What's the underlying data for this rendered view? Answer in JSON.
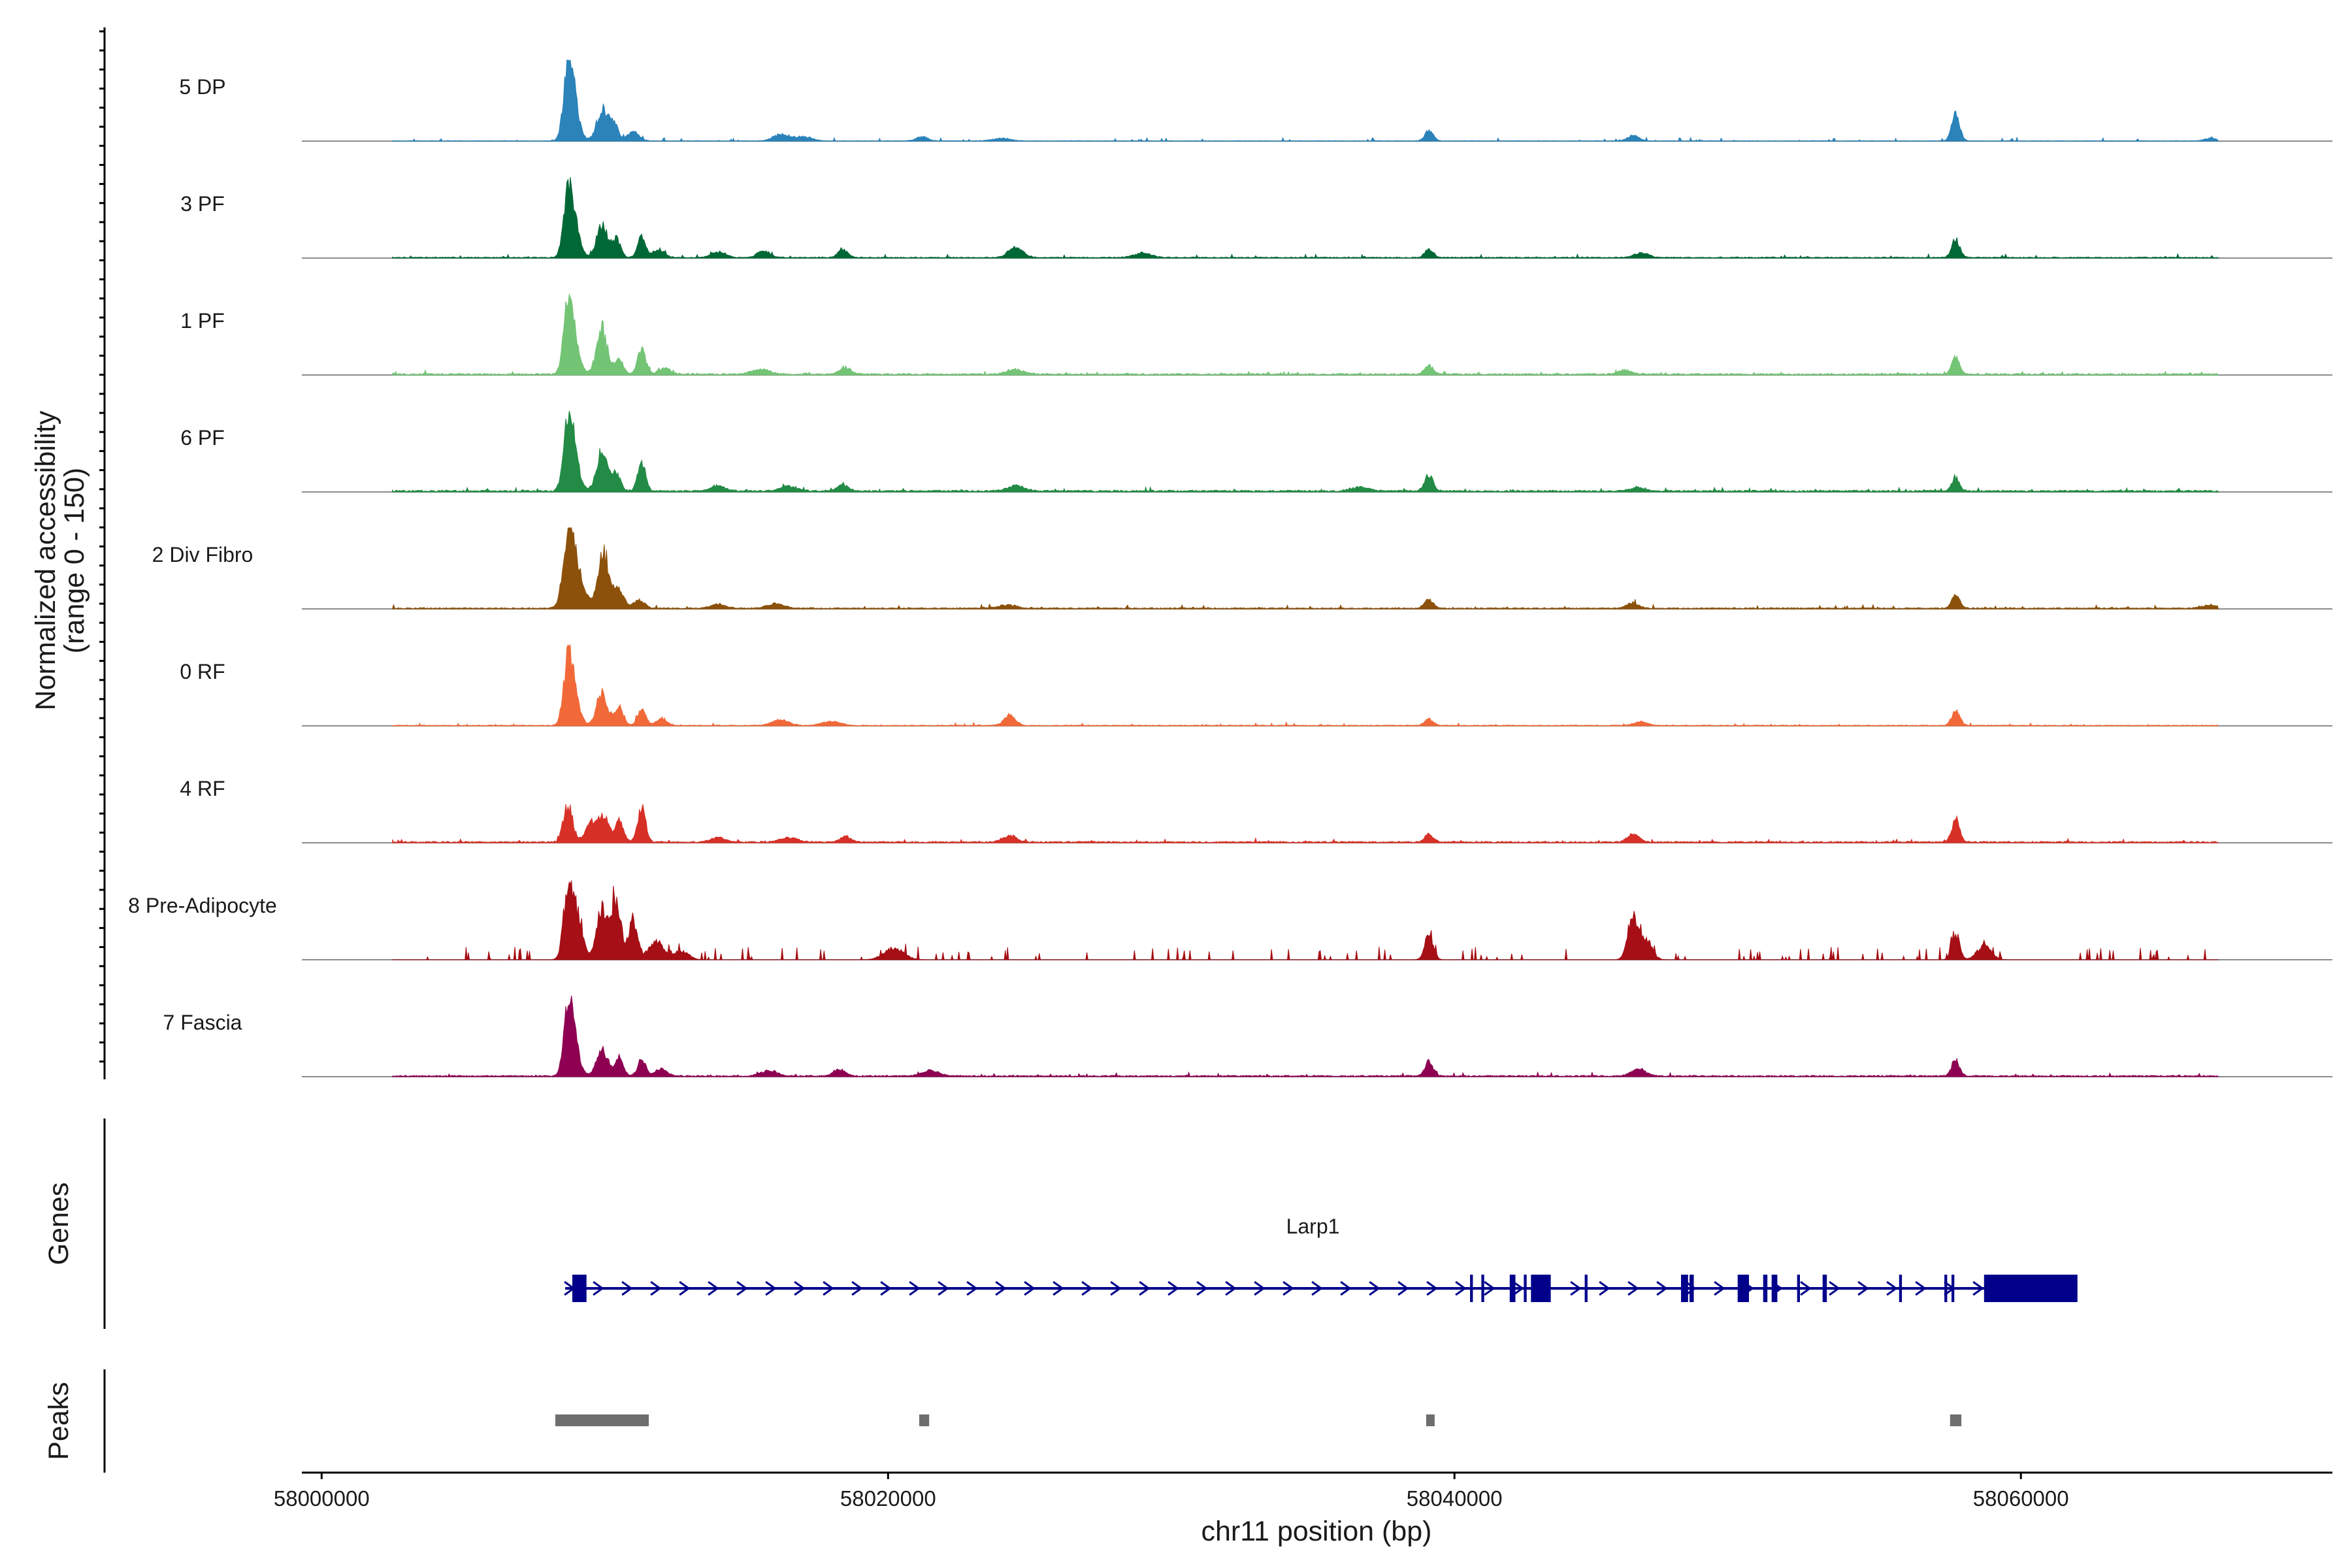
{
  "chart_data": {
    "type": "area",
    "panels": {
      "coverage_ylabel_line1": "Normalized accessibility",
      "coverage_ylabel_line2": "(range 0 - 150)",
      "genes_label": "Genes",
      "peaks_label": "Peaks"
    },
    "xlabel": "chr11 position (bp)",
    "xlim": [
      57999300,
      58071000
    ],
    "xticks": [
      58000000,
      58020000,
      58040000,
      58060000
    ],
    "xtick_labels": [
      "58000000",
      "58020000",
      "58040000",
      "58060000"
    ],
    "ylim": [
      0,
      150
    ],
    "data_range": [
      58002500,
      58067000
    ],
    "tracks": [
      {
        "name": "5 DP",
        "color": "#2b83ba",
        "baseline": 0.6,
        "scatter": "continuous",
        "peaks": [
          [
            58008700,
            145,
            160
          ],
          [
            58008900,
            78,
            200
          ],
          [
            58009900,
            70,
            190
          ],
          [
            58010300,
            42,
            150
          ],
          [
            58011000,
            20,
            200
          ],
          [
            58016200,
            14,
            260
          ],
          [
            58017000,
            10,
            300
          ],
          [
            58021200,
            9,
            200
          ],
          [
            58024000,
            6,
            300
          ],
          [
            58039100,
            22,
            150
          ],
          [
            58046300,
            12,
            200
          ],
          [
            58057700,
            60,
            140
          ],
          [
            58066700,
            6,
            200
          ]
        ]
      },
      {
        "name": "3 PF",
        "color": "#006837",
        "baseline": 1.2,
        "scatter": "continuous",
        "peaks": [
          [
            58008700,
            125,
            160
          ],
          [
            58008900,
            70,
            200
          ],
          [
            58009900,
            72,
            190
          ],
          [
            58010400,
            40,
            150
          ],
          [
            58011300,
            45,
            140
          ],
          [
            58011900,
            18,
            200
          ],
          [
            58014000,
            12,
            250
          ],
          [
            58015600,
            16,
            200
          ],
          [
            58018400,
            20,
            160
          ],
          [
            58024500,
            22,
            250
          ],
          [
            58029000,
            10,
            300
          ],
          [
            58039100,
            17,
            150
          ],
          [
            58046600,
            10,
            250
          ],
          [
            58057700,
            40,
            140
          ]
        ]
      },
      {
        "name": "1 PF",
        "color": "#74c476",
        "baseline": 1.8,
        "scatter": "continuous",
        "peaks": [
          [
            58008700,
            138,
            160
          ],
          [
            58008900,
            60,
            200
          ],
          [
            58009900,
            100,
            190
          ],
          [
            58010500,
            35,
            150
          ],
          [
            58011300,
            55,
            140
          ],
          [
            58012100,
            14,
            200
          ],
          [
            58015500,
            12,
            300
          ],
          [
            58018500,
            14,
            200
          ],
          [
            58024500,
            10,
            300
          ],
          [
            58039100,
            18,
            150
          ],
          [
            58046000,
            9,
            250
          ],
          [
            58057700,
            38,
            140
          ]
        ]
      },
      {
        "name": "6 PF",
        "color": "#238b45",
        "baseline": 2.0,
        "scatter": "continuous",
        "peaks": [
          [
            58008700,
            135,
            160
          ],
          [
            58008900,
            70,
            200
          ],
          [
            58009900,
            90,
            190
          ],
          [
            58010400,
            40,
            150
          ],
          [
            58011300,
            60,
            140
          ],
          [
            58014000,
            12,
            250
          ],
          [
            58016500,
            11,
            300
          ],
          [
            58018400,
            14,
            200
          ],
          [
            58024500,
            12,
            300
          ],
          [
            58036700,
            9,
            300
          ],
          [
            58039100,
            35,
            150
          ],
          [
            58046500,
            8,
            250
          ],
          [
            58057700,
            28,
            140
          ]
        ]
      },
      {
        "name": "2 Div Fibro",
        "color": "#8c510a",
        "baseline": 1.4,
        "scatter": "continuous",
        "peaks": [
          [
            58008700,
            150,
            180
          ],
          [
            58009000,
            80,
            260
          ],
          [
            58009950,
            125,
            200
          ],
          [
            58010500,
            45,
            160
          ],
          [
            58011200,
            18,
            200
          ],
          [
            58014000,
            10,
            250
          ],
          [
            58016000,
            10,
            300
          ],
          [
            58024200,
            8,
            300
          ],
          [
            58039100,
            20,
            150
          ],
          [
            58046300,
            12,
            200
          ],
          [
            58057700,
            30,
            140
          ],
          [
            58066700,
            6,
            300
          ]
        ]
      },
      {
        "name": "0 RF",
        "color": "#f16939",
        "baseline": 0.9,
        "scatter": "continuous",
        "peaks": [
          [
            58008700,
            125,
            160
          ],
          [
            58008900,
            65,
            200
          ],
          [
            58009900,
            75,
            190
          ],
          [
            58010500,
            45,
            150
          ],
          [
            58011300,
            40,
            140
          ],
          [
            58012000,
            14,
            200
          ],
          [
            58016200,
            12,
            300
          ],
          [
            58018000,
            10,
            300
          ],
          [
            58024300,
            22,
            200
          ],
          [
            58039100,
            14,
            150
          ],
          [
            58046600,
            8,
            250
          ],
          [
            58057700,
            34,
            140
          ]
        ]
      },
      {
        "name": "4 RF",
        "color": "#d73027",
        "baseline": 1.6,
        "scatter": "continuous",
        "peaks": [
          [
            58008700,
            85,
            160
          ],
          [
            58009500,
            40,
            200
          ],
          [
            58009950,
            55,
            190
          ],
          [
            58010500,
            45,
            150
          ],
          [
            58011300,
            75,
            140
          ],
          [
            58014000,
            10,
            250
          ],
          [
            58016500,
            10,
            300
          ],
          [
            58018500,
            12,
            200
          ],
          [
            58024300,
            14,
            250
          ],
          [
            58039100,
            18,
            150
          ],
          [
            58046300,
            18,
            200
          ],
          [
            58057700,
            50,
            140
          ]
        ]
      },
      {
        "name": "8 Pre-Adipocyte",
        "color": "#a50f15",
        "baseline": 0.0,
        "scatter": "sparse",
        "peaks": [
          [
            58008700,
            150,
            160
          ],
          [
            58009000,
            95,
            200
          ],
          [
            58009900,
            110,
            190
          ],
          [
            58010400,
            125,
            170
          ],
          [
            58011000,
            90,
            160
          ],
          [
            58011800,
            40,
            250
          ],
          [
            58012700,
            20,
            250
          ],
          [
            58020200,
            25,
            350
          ],
          [
            58039100,
            55,
            150
          ],
          [
            58046300,
            100,
            180
          ],
          [
            58046800,
            40,
            200
          ],
          [
            58057700,
            55,
            140
          ],
          [
            58058700,
            30,
            250
          ]
        ]
      },
      {
        "name": "7 Fascia",
        "color": "#8e0152",
        "baseline": 1.5,
        "scatter": "continuous",
        "peaks": [
          [
            58008700,
            128,
            160
          ],
          [
            58008900,
            68,
            200
          ],
          [
            58009900,
            60,
            190
          ],
          [
            58010500,
            45,
            150
          ],
          [
            58011300,
            38,
            140
          ],
          [
            58012000,
            16,
            200
          ],
          [
            58015800,
            12,
            300
          ],
          [
            58018300,
            14,
            200
          ],
          [
            58021500,
            12,
            300
          ],
          [
            58039100,
            32,
            150
          ],
          [
            58046500,
            16,
            250
          ],
          [
            58057700,
            36,
            140
          ]
        ]
      }
    ],
    "gene": {
      "name": "Larp1",
      "strand": "+",
      "color": "#00008b",
      "start": 58008600,
      "end": 58061900,
      "exons": [
        [
          58008850,
          58009350
        ],
        [
          58040550,
          58040650
        ],
        [
          58040950,
          58041050
        ],
        [
          58041950,
          58042150
        ],
        [
          58042450,
          58042550
        ],
        [
          58042700,
          58043400
        ],
        [
          58044600,
          58044700
        ],
        [
          58048000,
          58048250
        ],
        [
          58048300,
          58048450
        ],
        [
          58050000,
          58050400
        ],
        [
          58050900,
          58051050
        ],
        [
          58051200,
          58051400
        ],
        [
          58052100,
          58052200
        ],
        [
          58053000,
          58053150
        ],
        [
          58055700,
          58055800
        ],
        [
          58057300,
          58057400
        ],
        [
          58057550,
          58057650
        ],
        [
          58058700,
          58062000
        ]
      ]
    },
    "peak_regions": [
      [
        58008250,
        58011550
      ],
      [
        58021100,
        58021450
      ],
      [
        58039000,
        58039300
      ],
      [
        58057500,
        58057900
      ]
    ]
  }
}
